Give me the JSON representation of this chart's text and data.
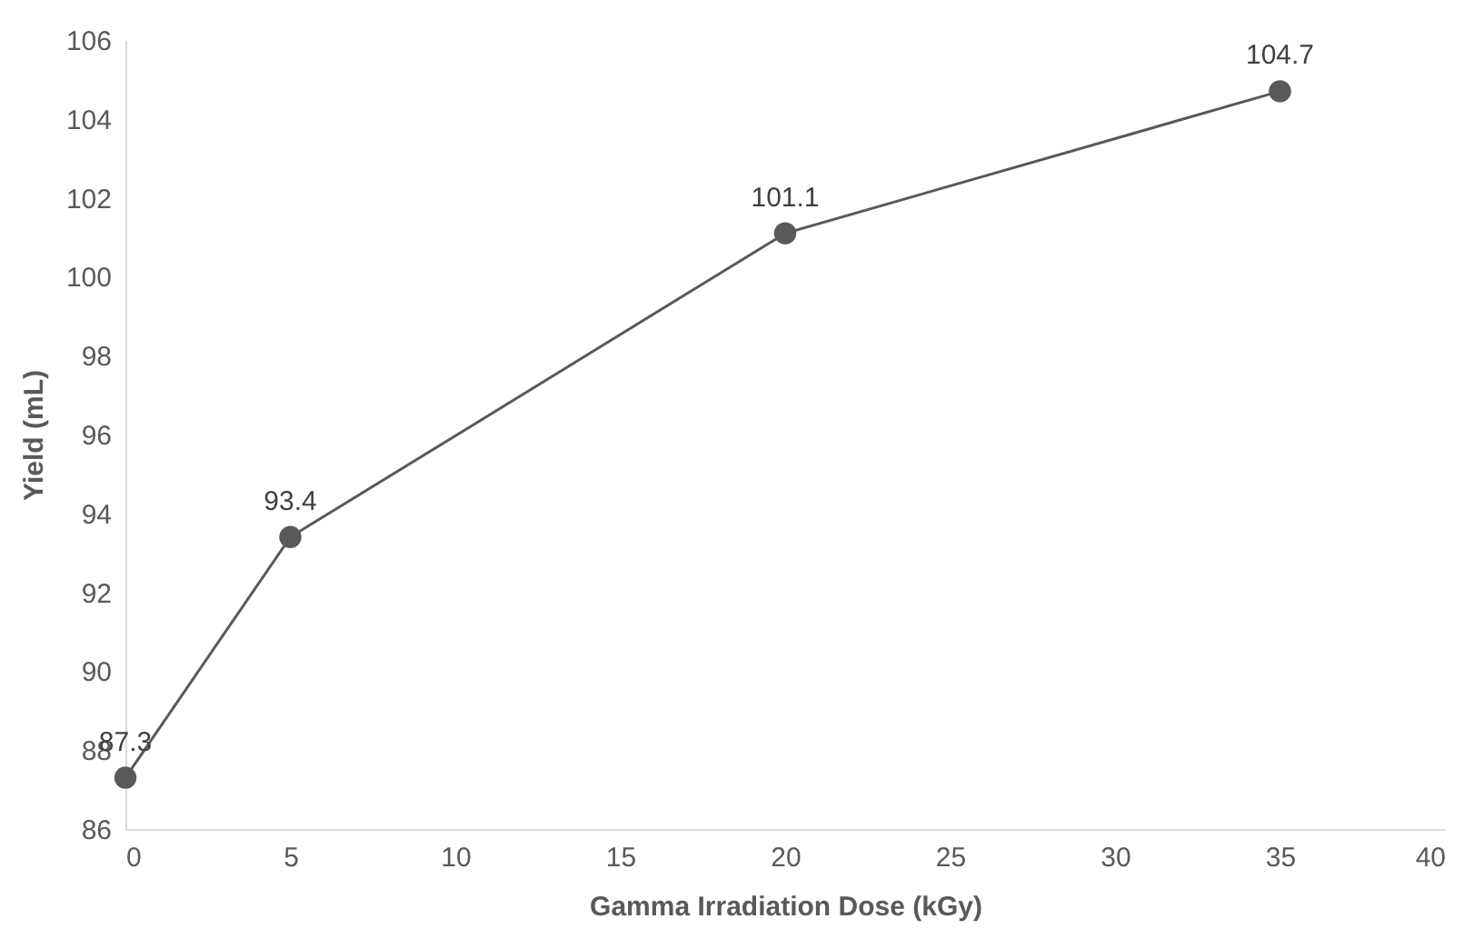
{
  "chart_data": {
    "type": "line",
    "xlabel": "Gamma Irradiation Dose (kGy)",
    "ylabel": "Yield (mL)",
    "x": [
      0,
      5,
      20,
      35
    ],
    "series": [
      {
        "color": "#595959",
        "values": [
          87.3,
          93.4,
          101.1,
          104.7
        ]
      }
    ],
    "xlim": [
      0,
      40
    ],
    "xticks": [
      0,
      5,
      10,
      15,
      20,
      25,
      30,
      35,
      40
    ],
    "ylim": [
      86,
      106
    ],
    "yticks": [
      86,
      88,
      90,
      92,
      94,
      96,
      98,
      100,
      102,
      104,
      106
    ],
    "grid": false,
    "marker": "circle",
    "line_style": "solid",
    "data_labels": true
  }
}
